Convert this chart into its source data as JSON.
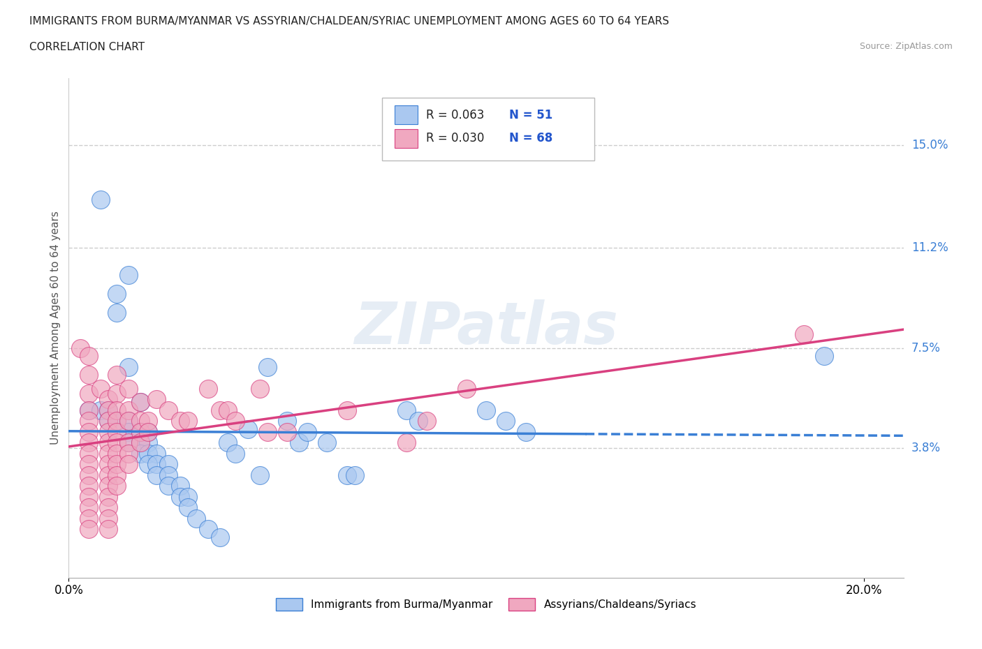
{
  "title_line1": "IMMIGRANTS FROM BURMA/MYANMAR VS ASSYRIAN/CHALDEAN/SYRIAC UNEMPLOYMENT AMONG AGES 60 TO 64 YEARS",
  "title_line2": "CORRELATION CHART",
  "source_text": "Source: ZipAtlas.com",
  "ylabel": "Unemployment Among Ages 60 to 64 years",
  "xlim": [
    0.0,
    0.21
  ],
  "ylim": [
    -0.01,
    0.175
  ],
  "yticks": [
    0.038,
    0.075,
    0.112,
    0.15
  ],
  "ytick_labels": [
    "3.8%",
    "7.5%",
    "11.2%",
    "15.0%"
  ],
  "xtick_positions": [
    0.0,
    0.2
  ],
  "xtick_labels": [
    "0.0%",
    "20.0%"
  ],
  "watermark": "ZIPatlas",
  "blue_scatter": [
    [
      0.008,
      0.13
    ],
    [
      0.012,
      0.095
    ],
    [
      0.012,
      0.088
    ],
    [
      0.015,
      0.102
    ],
    [
      0.015,
      0.068
    ],
    [
      0.018,
      0.055
    ],
    [
      0.005,
      0.052
    ],
    [
      0.008,
      0.052
    ],
    [
      0.01,
      0.052
    ],
    [
      0.01,
      0.048
    ],
    [
      0.012,
      0.048
    ],
    [
      0.015,
      0.048
    ],
    [
      0.015,
      0.044
    ],
    [
      0.018,
      0.044
    ],
    [
      0.02,
      0.044
    ],
    [
      0.015,
      0.04
    ],
    [
      0.018,
      0.04
    ],
    [
      0.02,
      0.04
    ],
    [
      0.018,
      0.036
    ],
    [
      0.02,
      0.036
    ],
    [
      0.022,
      0.036
    ],
    [
      0.02,
      0.032
    ],
    [
      0.022,
      0.032
    ],
    [
      0.025,
      0.032
    ],
    [
      0.022,
      0.028
    ],
    [
      0.025,
      0.028
    ],
    [
      0.025,
      0.024
    ],
    [
      0.028,
      0.024
    ],
    [
      0.028,
      0.02
    ],
    [
      0.03,
      0.02
    ],
    [
      0.03,
      0.016
    ],
    [
      0.032,
      0.012
    ],
    [
      0.035,
      0.008
    ],
    [
      0.038,
      0.005
    ],
    [
      0.04,
      0.04
    ],
    [
      0.042,
      0.036
    ],
    [
      0.045,
      0.045
    ],
    [
      0.048,
      0.028
    ],
    [
      0.05,
      0.068
    ],
    [
      0.055,
      0.048
    ],
    [
      0.058,
      0.04
    ],
    [
      0.06,
      0.044
    ],
    [
      0.065,
      0.04
    ],
    [
      0.07,
      0.028
    ],
    [
      0.072,
      0.028
    ],
    [
      0.085,
      0.052
    ],
    [
      0.088,
      0.048
    ],
    [
      0.105,
      0.052
    ],
    [
      0.11,
      0.048
    ],
    [
      0.115,
      0.044
    ],
    [
      0.19,
      0.072
    ]
  ],
  "pink_scatter": [
    [
      0.003,
      0.075
    ],
    [
      0.005,
      0.072
    ],
    [
      0.005,
      0.065
    ],
    [
      0.005,
      0.058
    ],
    [
      0.005,
      0.052
    ],
    [
      0.005,
      0.048
    ],
    [
      0.005,
      0.044
    ],
    [
      0.005,
      0.04
    ],
    [
      0.005,
      0.036
    ],
    [
      0.005,
      0.032
    ],
    [
      0.005,
      0.028
    ],
    [
      0.005,
      0.024
    ],
    [
      0.005,
      0.02
    ],
    [
      0.005,
      0.016
    ],
    [
      0.005,
      0.012
    ],
    [
      0.005,
      0.008
    ],
    [
      0.008,
      0.06
    ],
    [
      0.01,
      0.056
    ],
    [
      0.01,
      0.052
    ],
    [
      0.01,
      0.048
    ],
    [
      0.01,
      0.044
    ],
    [
      0.01,
      0.04
    ],
    [
      0.01,
      0.036
    ],
    [
      0.01,
      0.032
    ],
    [
      0.01,
      0.028
    ],
    [
      0.01,
      0.024
    ],
    [
      0.01,
      0.02
    ],
    [
      0.01,
      0.016
    ],
    [
      0.01,
      0.012
    ],
    [
      0.01,
      0.008
    ],
    [
      0.012,
      0.065
    ],
    [
      0.012,
      0.058
    ],
    [
      0.012,
      0.052
    ],
    [
      0.012,
      0.048
    ],
    [
      0.012,
      0.044
    ],
    [
      0.012,
      0.04
    ],
    [
      0.012,
      0.036
    ],
    [
      0.012,
      0.032
    ],
    [
      0.012,
      0.028
    ],
    [
      0.012,
      0.024
    ],
    [
      0.015,
      0.06
    ],
    [
      0.015,
      0.052
    ],
    [
      0.015,
      0.048
    ],
    [
      0.015,
      0.04
    ],
    [
      0.015,
      0.036
    ],
    [
      0.015,
      0.032
    ],
    [
      0.018,
      0.055
    ],
    [
      0.018,
      0.048
    ],
    [
      0.018,
      0.044
    ],
    [
      0.018,
      0.04
    ],
    [
      0.02,
      0.048
    ],
    [
      0.02,
      0.044
    ],
    [
      0.022,
      0.056
    ],
    [
      0.025,
      0.052
    ],
    [
      0.028,
      0.048
    ],
    [
      0.03,
      0.048
    ],
    [
      0.035,
      0.06
    ],
    [
      0.038,
      0.052
    ],
    [
      0.04,
      0.052
    ],
    [
      0.042,
      0.048
    ],
    [
      0.048,
      0.06
    ],
    [
      0.05,
      0.044
    ],
    [
      0.055,
      0.044
    ],
    [
      0.07,
      0.052
    ],
    [
      0.085,
      0.04
    ],
    [
      0.09,
      0.048
    ],
    [
      0.1,
      0.06
    ],
    [
      0.185,
      0.08
    ]
  ],
  "blue_color": "#aac8f0",
  "pink_color": "#f0a8c0",
  "blue_line_color": "#3a7fd5",
  "pink_line_color": "#d94080",
  "legend_R1": "R = 0.063",
  "legend_N1": "N = 51",
  "legend_R2": "R = 0.030",
  "legend_N2": "N = 68",
  "legend_value_color": "#2255cc",
  "grid_color": "#cccccc",
  "bg_color": "#ffffff",
  "bottom_legend_label1": "Immigrants from Burma/Myanmar",
  "bottom_legend_label2": "Assyrians/Chaldeans/Syriacs",
  "blue_line_start": 0.0,
  "blue_line_end": 0.21,
  "pink_line_start": 0.0,
  "pink_line_end": 0.21
}
